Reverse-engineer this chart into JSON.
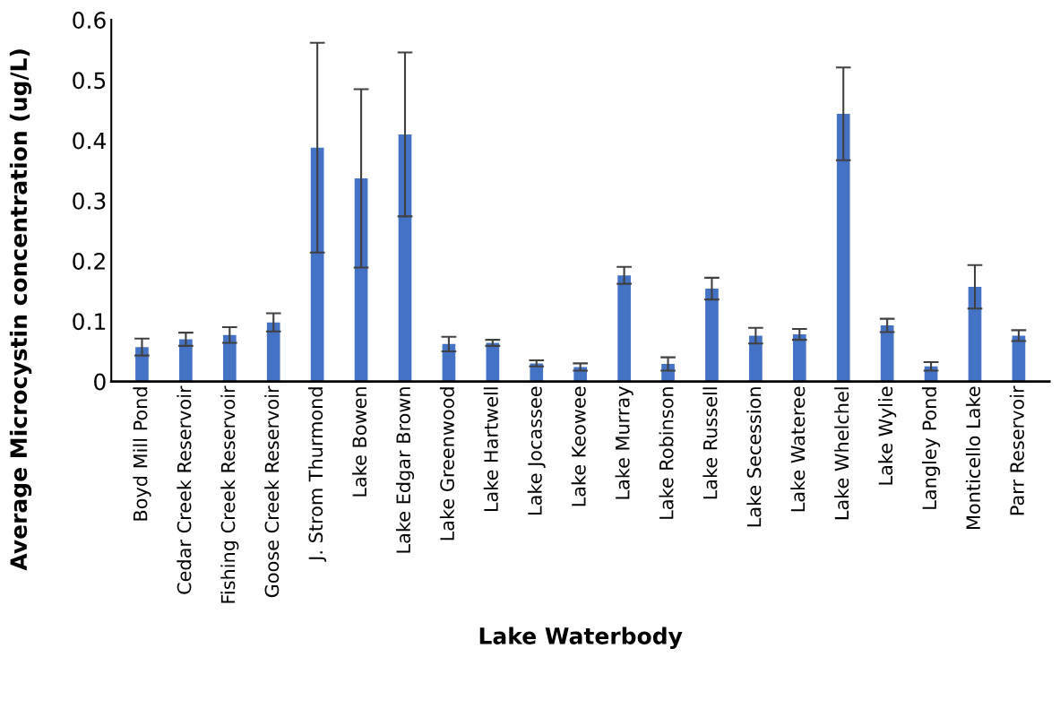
{
  "chart_data": {
    "type": "bar",
    "xlabel": "Lake Waterbody",
    "ylabel": "Average Microcystin concentration (ug/L)",
    "categories": [
      "Boyd Mill Pond",
      "Cedar Creek Reservoir",
      "Fishing Creek Reservoir",
      "Goose Creek Reservoir",
      "J. Strom Thurmond",
      "Lake Bowen",
      "Lake Edgar Brown",
      "Lake Greenwood",
      "Lake Hartwell",
      "Lake Jocassee",
      "Lake Keowee",
      "Lake Murray",
      "Lake Robinson",
      "Lake Russell",
      "Lake Secession",
      "Lake Wateree",
      "Lake Whelchel",
      "Lake Wylie",
      "Langley Pond",
      "Monticello Lake",
      "Parr Reservoir"
    ],
    "values": [
      0.057,
      0.07,
      0.077,
      0.098,
      0.388,
      0.337,
      0.41,
      0.062,
      0.064,
      0.03,
      0.024,
      0.176,
      0.029,
      0.154,
      0.076,
      0.078,
      0.444,
      0.093,
      0.025,
      0.157,
      0.076
    ],
    "errors": [
      0.014,
      0.011,
      0.013,
      0.015,
      0.174,
      0.148,
      0.136,
      0.012,
      0.005,
      0.005,
      0.006,
      0.014,
      0.011,
      0.018,
      0.013,
      0.009,
      0.077,
      0.011,
      0.007,
      0.036,
      0.009
    ],
    "color": "#4472c4",
    "ylim": [
      0,
      0.6
    ],
    "yticks": [
      0,
      0.1,
      0.2,
      0.3,
      0.4,
      0.5,
      0.6
    ],
    "grid": false,
    "legend": false
  }
}
